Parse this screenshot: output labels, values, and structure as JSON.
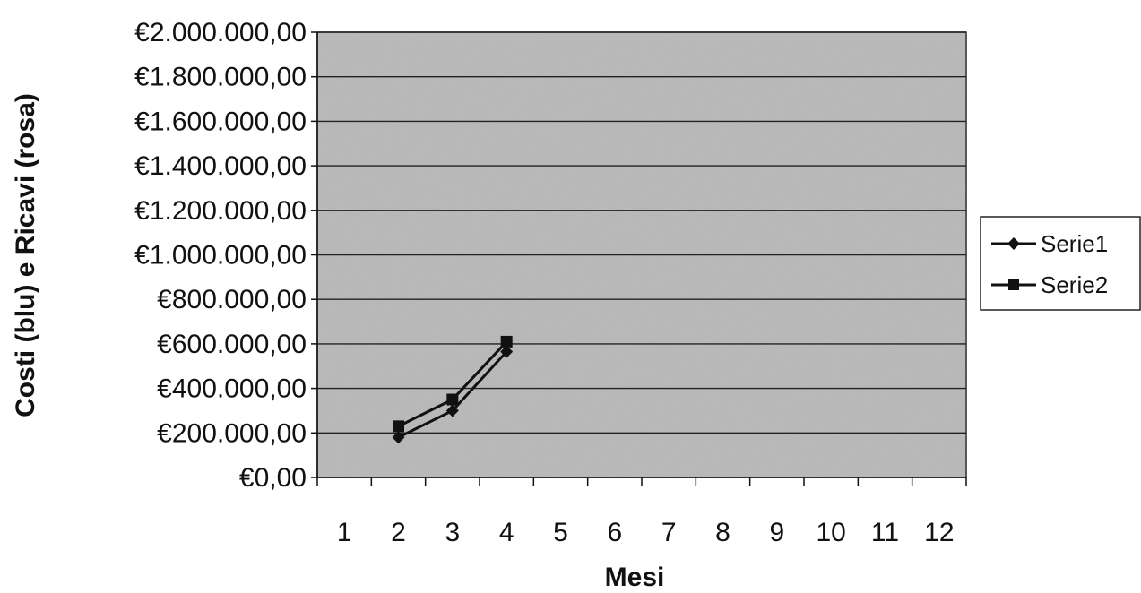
{
  "chart_data": {
    "type": "line",
    "title": "",
    "xlabel": "Mesi",
    "ylabel": "Costi (blu) e Ricavi (rosa)",
    "categories": [
      "1",
      "2",
      "3",
      "4",
      "5",
      "6",
      "7",
      "8",
      "9",
      "10",
      "11",
      "12"
    ],
    "y_tick_labels": [
      "€0,00",
      "€200.000,00",
      "€400.000,00",
      "€600.000,00",
      "€800.000,00",
      "€1.000.000,00",
      "€1.200.000,00",
      "€1.400.000,00",
      "€1.600.000,00",
      "€1.800.000,00",
      "€2.000.000,00"
    ],
    "ylim": [
      0,
      2000000
    ],
    "y_step": 200000,
    "grid": true,
    "legend": "right",
    "series": [
      {
        "name": "Serie1",
        "marker": "diamond",
        "x": [
          2,
          3,
          4
        ],
        "values": [
          180000,
          300000,
          565000
        ]
      },
      {
        "name": "Serie2",
        "marker": "square",
        "x": [
          2,
          3,
          4
        ],
        "values": [
          230000,
          350000,
          610000
        ]
      }
    ],
    "colors": {
      "plot_bg": "#b8b8b8",
      "line": "#111111",
      "grid": "#222222"
    }
  }
}
